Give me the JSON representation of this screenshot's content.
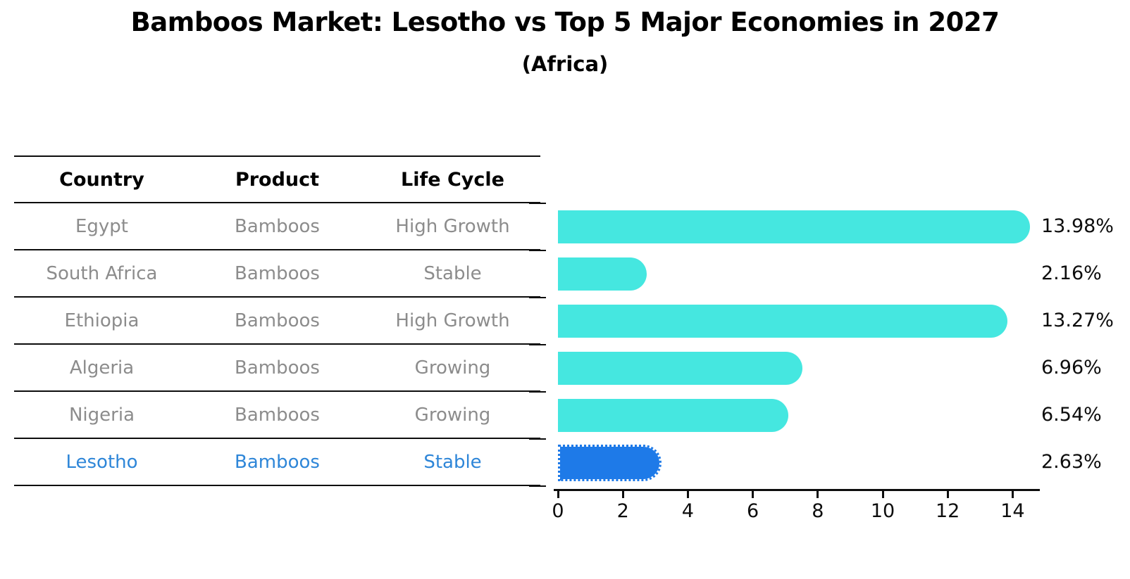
{
  "title": "Bamboos Market: Lesotho vs Top 5 Major Economies in 2027",
  "subtitle": "(Africa)",
  "table": {
    "headers": [
      "Country",
      "Product",
      "Life Cycle"
    ],
    "rows": [
      {
        "country": "Egypt",
        "product": "Bamboos",
        "life_cycle": "High Growth",
        "highlight": false
      },
      {
        "country": "South Africa",
        "product": "Bamboos",
        "life_cycle": "Stable",
        "highlight": false
      },
      {
        "country": "Ethiopia",
        "product": "Bamboos",
        "life_cycle": "High Growth",
        "highlight": false
      },
      {
        "country": "Algeria",
        "product": "Bamboos",
        "life_cycle": "Growing",
        "highlight": false
      },
      {
        "country": "Nigeria",
        "product": "Bamboos",
        "life_cycle": "Growing",
        "highlight": false
      },
      {
        "country": "Lesotho",
        "product": "Bamboos",
        "life_cycle": "Stable",
        "highlight": true
      }
    ]
  },
  "chart_data": {
    "type": "bar",
    "orientation": "horizontal",
    "title": "Bamboos Market: Lesotho vs Top 5 Major Economies in 2027",
    "subtitle": "(Africa)",
    "categories": [
      "Egypt",
      "South Africa",
      "Ethiopia",
      "Algeria",
      "Nigeria",
      "Lesotho"
    ],
    "values": [
      13.98,
      2.16,
      13.27,
      6.96,
      6.54,
      2.63
    ],
    "value_labels": [
      "13.98%",
      "2.16%",
      "13.27%",
      "6.96%",
      "6.54%",
      "2.63%"
    ],
    "x_ticks": [
      0,
      2,
      4,
      6,
      8,
      10,
      12,
      14
    ],
    "xlim": [
      0,
      14.7
    ],
    "grid": false,
    "legend": "none",
    "highlight_index": 5,
    "colors": {
      "bar_default": "#45e7e0",
      "bar_highlight": "#1e7ae8",
      "highlight_text": "#2e86d8",
      "cell_text": "#8c8c8c",
      "axis_text": "#0d0d0d"
    }
  }
}
